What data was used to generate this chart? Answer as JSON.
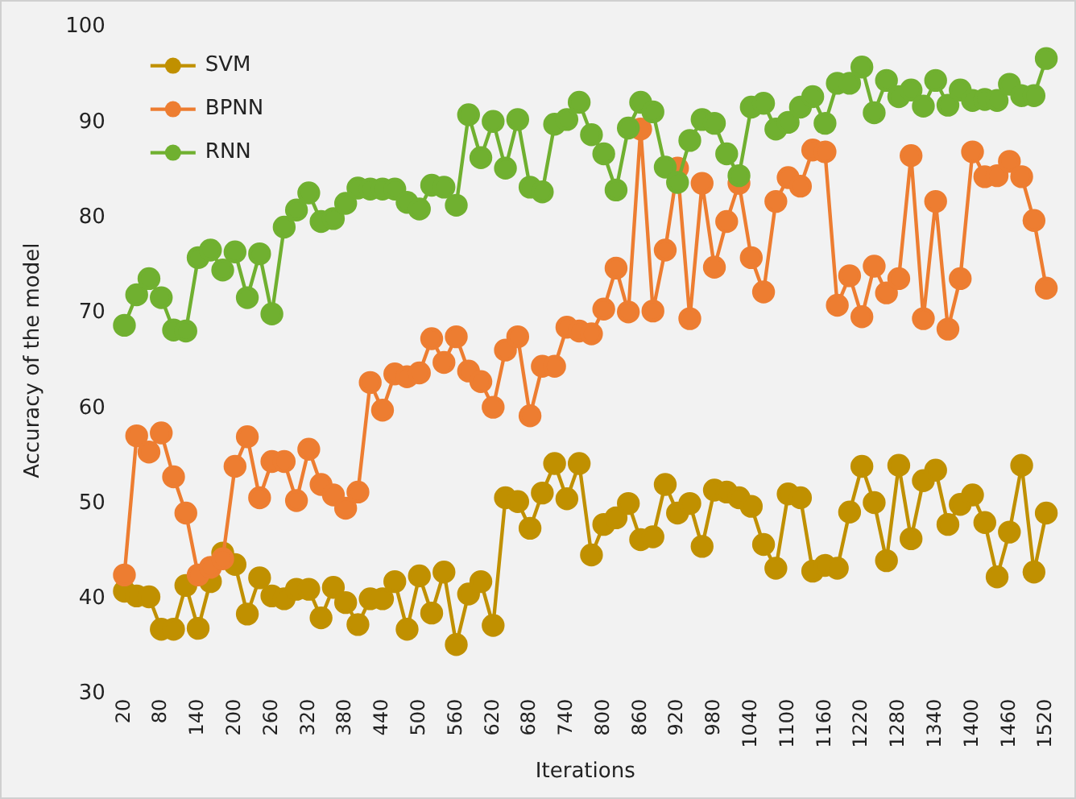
{
  "chart_data": {
    "type": "line",
    "xlabel": "Iterations",
    "ylabel": "Accuracy of the model",
    "categories": [
      "20",
      null,
      null,
      "80",
      null,
      null,
      "140",
      null,
      null,
      "200",
      null,
      null,
      "260",
      null,
      null,
      "320",
      null,
      null,
      "380",
      null,
      null,
      "440",
      null,
      null,
      "500",
      null,
      null,
      "560",
      null,
      null,
      "620",
      null,
      null,
      "680",
      null,
      null,
      "740",
      null,
      null,
      "800",
      null,
      null,
      "860",
      null,
      null,
      "920",
      null,
      null,
      "980",
      null,
      null,
      "1040",
      null,
      null,
      "1100",
      null,
      null,
      "1160",
      null,
      null,
      "1220",
      null,
      null,
      "1280",
      null,
      null,
      "1340",
      null,
      null,
      "1400",
      null,
      null,
      "1460",
      null,
      null,
      "1520"
    ],
    "ylim": [
      30,
      100
    ],
    "yticks": [
      30,
      40,
      50,
      60,
      70,
      80,
      90,
      100
    ],
    "grid": false,
    "legend": "top left",
    "marker": "circle",
    "line_style": "solid",
    "series": [
      {
        "name": "SVM",
        "color": "#c09000",
        "values": [
          40.8,
          40.3,
          40.2,
          36.8,
          36.8,
          41.4,
          36.9,
          41.8,
          44.8,
          43.6,
          38.4,
          42.2,
          40.3,
          40.0,
          41,
          41,
          38,
          41.2,
          39.6,
          37.3,
          40,
          40,
          41.8,
          36.8,
          42.4,
          38.5,
          42.8,
          35.2,
          40.5,
          41.8,
          37.2,
          50.6,
          50.2,
          47.4,
          51.1,
          54.2,
          50.5,
          54.2,
          44.6,
          47.8,
          48.5,
          50,
          46.2,
          46.5,
          52,
          49,
          50,
          45.5,
          51.4,
          51.2,
          50.6,
          49.7,
          45.7,
          43.2,
          51,
          50.6,
          42.9,
          43.5,
          43.2,
          49.1,
          53.9,
          50.1,
          44,
          54,
          46.3,
          52.4,
          53.5,
          47.8,
          49.9,
          50.9,
          48,
          42.3,
          47,
          54,
          42.8,
          49
        ]
      },
      {
        "name": "BPNN",
        "color": "#ed7d31",
        "values": [
          42.5,
          57.1,
          55.4,
          57.4,
          52.8,
          49,
          42.5,
          43.3,
          44.2,
          53.9,
          57,
          50.6,
          54.4,
          54.4,
          50.3,
          55.7,
          52,
          50.9,
          49.5,
          51.2,
          62.7,
          59.8,
          63.6,
          63.3,
          63.7,
          67.3,
          64.8,
          67.5,
          63.9,
          62.8,
          60.1,
          66.1,
          67.5,
          59.2,
          64.4,
          64.4,
          68.5,
          68.1,
          67.8,
          70.4,
          74.7,
          70.1,
          89.3,
          70.2,
          76.6,
          85.2,
          69.4,
          83.6,
          74.8,
          79.6,
          83.6,
          75.8,
          72.2,
          81.7,
          84.2,
          83.3,
          87.1,
          86.9,
          70.8,
          73.9,
          69.6,
          74.9,
          72.1,
          73.6,
          86.5,
          69.4,
          81.7,
          68.3,
          73.6,
          86.9,
          84.3,
          84.4,
          85.9,
          84.3,
          79.7,
          72.6
        ]
      },
      {
        "name": "RNN",
        "color": "#70b030",
        "values": [
          68.7,
          71.9,
          73.6,
          71.6,
          68.2,
          68.1,
          75.8,
          76.6,
          74.5,
          76.4,
          71.6,
          76.2,
          69.9,
          79,
          80.8,
          82.6,
          79.6,
          79.9,
          81.5,
          83.1,
          83,
          83,
          83,
          81.6,
          80.9,
          83.4,
          83.2,
          81.3,
          90.8,
          86.3,
          90.1,
          85.2,
          90.3,
          83.2,
          82.7,
          89.8,
          90.3,
          92.1,
          88.7,
          86.7,
          82.9,
          89.4,
          92.1,
          91.1,
          85.3,
          83.7,
          88.1,
          90.3,
          89.9,
          86.7,
          84.4,
          91.6,
          92,
          89.3,
          90,
          91.6,
          92.7,
          89.9,
          94.1,
          94.1,
          95.8,
          91,
          94.4,
          92.7,
          93.4,
          91.7,
          94.4,
          91.8,
          93.4,
          92.3,
          92.4,
          92.3,
          94,
          92.8,
          92.8,
          96.7
        ]
      }
    ]
  }
}
